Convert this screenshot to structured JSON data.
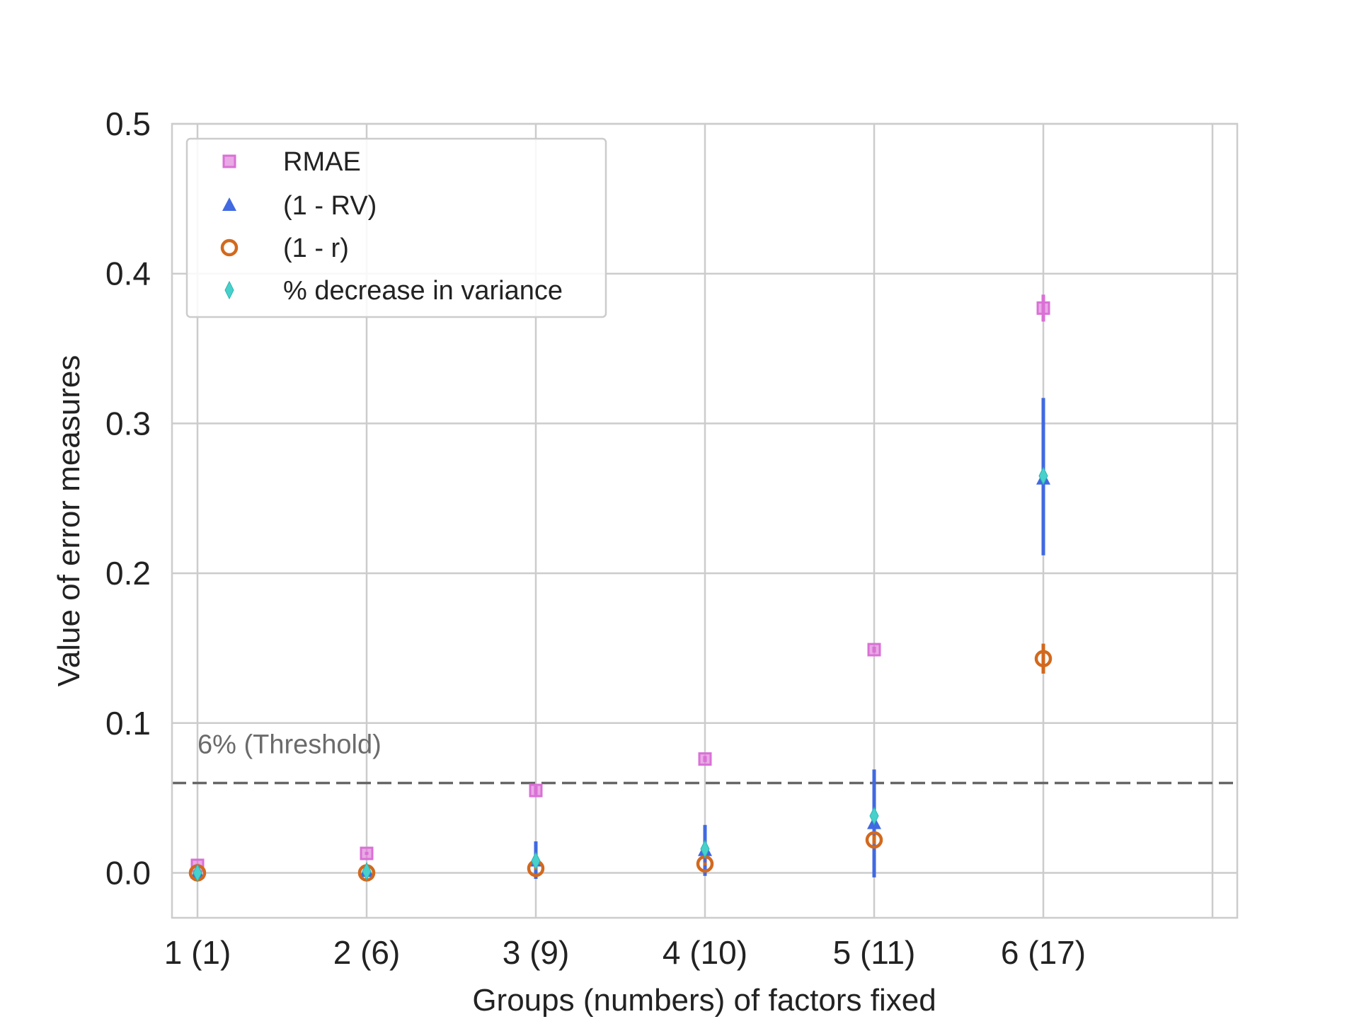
{
  "chart_data": {
    "type": "scatter",
    "title": "",
    "xlabel": "Groups (numbers) of factors fixed",
    "ylabel": "Value of error measures",
    "categories": [
      "1 (1)",
      "2 (6)",
      "3 (9)",
      "4 (10)",
      "5 (11)",
      "6 (17)"
    ],
    "ylim": [
      -0.03,
      0.5
    ],
    "yticks": [
      0.0,
      0.1,
      0.2,
      0.3,
      0.4,
      0.5
    ],
    "ytick_labels": [
      "0.0",
      "0.1",
      "0.2",
      "0.3",
      "0.4",
      "0.5"
    ],
    "grid": true,
    "legend_position": "top-left",
    "series": [
      {
        "name": "RMAE",
        "marker": "square",
        "color": "#DA70D6",
        "values": [
          0.005,
          0.013,
          0.055,
          0.076,
          0.149,
          0.377
        ],
        "err_low": [
          0.004,
          0.012,
          0.052,
          0.074,
          0.147,
          0.368
        ],
        "err_high": [
          0.006,
          0.014,
          0.058,
          0.078,
          0.151,
          0.386
        ]
      },
      {
        "name": "(1 - RV)",
        "marker": "triangle",
        "color": "#4169E1",
        "values": [
          0.0,
          0.001,
          0.008,
          0.015,
          0.033,
          0.263
        ],
        "err_low": [
          -0.002,
          -0.001,
          -0.004,
          -0.002,
          -0.003,
          0.212
        ],
        "err_high": [
          0.002,
          0.003,
          0.021,
          0.032,
          0.069,
          0.317
        ]
      },
      {
        "name": "(1 - r)",
        "marker": "circle-open",
        "color": "#D2691E",
        "values": [
          0.0,
          0.0,
          0.003,
          0.006,
          0.022,
          0.143
        ],
        "err_low": [
          0.0,
          0.0,
          0.002,
          0.005,
          0.019,
          0.133
        ],
        "err_high": [
          0.0,
          0.0,
          0.004,
          0.007,
          0.025,
          0.153
        ]
      },
      {
        "name": "% decrease in variance",
        "marker": "thin-diamond",
        "color": "#48D1CC",
        "values": [
          0.0,
          0.001,
          0.008,
          0.016,
          0.038,
          0.265
        ]
      }
    ],
    "reference_line": {
      "y": 0.06,
      "style": "dashed",
      "color": "#666666",
      "label": "6% (Threshold)"
    }
  }
}
